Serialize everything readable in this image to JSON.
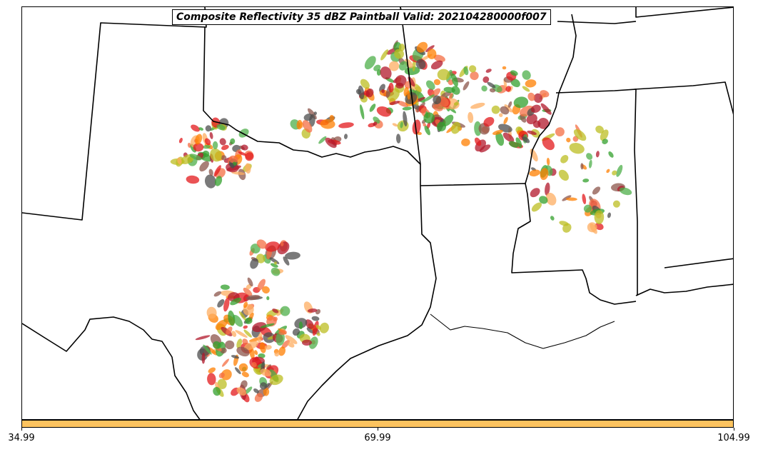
{
  "title": "Composite Reflectivity 35 dBZ Paintball Valid: 202104280000f007",
  "colorbar": {
    "color": "#fcc35f",
    "ticks": [
      {
        "label": "34.99",
        "value": 34.99
      },
      {
        "label": "69.99",
        "value": 69.99
      },
      {
        "label": "104.99",
        "value": 104.99
      }
    ],
    "range": [
      34.99,
      104.99
    ]
  },
  "map": {
    "region": "south-central-us",
    "member_colors": [
      "#e31a1c",
      "#ff7f00",
      "#fdae61",
      "#33a02c",
      "#4daf4a",
      "#b2182b",
      "#8c564b",
      "#bcbd22",
      "#4d4d4d",
      "#f46d43"
    ],
    "boundary_color": "#000000"
  }
}
